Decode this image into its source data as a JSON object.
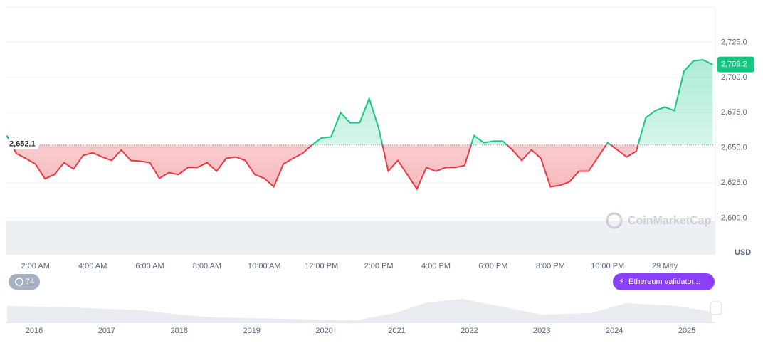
{
  "chart_data": {
    "type": "line",
    "categories": [
      null,
      null,
      null,
      "2:00 AM",
      null,
      null,
      null,
      null,
      null,
      "4:00 AM",
      null,
      null,
      null,
      null,
      null,
      "6:00 AM",
      null,
      null,
      null,
      null,
      null,
      "8:00 AM",
      null,
      null,
      null,
      null,
      null,
      "10:00 AM",
      null,
      null,
      null,
      null,
      null,
      "12:00 PM",
      null,
      null,
      null,
      null,
      null,
      "2:00 PM",
      null,
      null,
      null,
      null,
      null,
      "4:00 PM",
      null,
      null,
      null,
      null,
      null,
      "6:00 PM",
      null,
      null,
      null,
      null,
      null,
      "8:00 PM",
      null,
      null,
      null,
      null,
      null,
      "10:00 PM",
      null,
      null,
      null,
      null,
      null,
      "29 May",
      null,
      null,
      null,
      null,
      null
    ],
    "series": [
      {
        "values": [
          2658.7,
          2646,
          2642.5,
          2638.5,
          2628,
          2631,
          2639.5,
          2635,
          2644.5,
          2646.5,
          2643.5,
          2641,
          2648.5,
          2641,
          2640.5,
          2639.5,
          2628.3,
          2632.4,
          2631,
          2636,
          2636,
          2639.5,
          2633.4,
          2642.5,
          2643.5,
          2641,
          2631,
          2628.3,
          2622.3,
          2638.5,
          2642.5,
          2646,
          2652,
          2657,
          2657.7,
          2675,
          2667.8,
          2667.8,
          2685,
          2663.8,
          2633.4,
          2641,
          2631,
          2620.7,
          2636,
          2633.4,
          2636,
          2636,
          2637.4,
          2658.7,
          2653.6,
          2654.7,
          2654.7,
          2648.6,
          2641,
          2648.6,
          2642.5,
          2622.3,
          2623.3,
          2625.8,
          2633.4,
          2633.4,
          2643.5,
          2653.6,
          2648.6,
          2643.5,
          2647.6,
          2671.4,
          2676.4,
          2679,
          2676.4,
          2704.3,
          2711.8,
          2712.5,
          2709.2
        ]
      }
    ],
    "up_color": "#16c784",
    "down_color": "#ea3943",
    "baseline": {
      "value": 2652.1,
      "label": "2,652.1"
    },
    "current_price": {
      "value": 2709.2,
      "label": "2,709.2"
    },
    "ylim": [
      2574,
      2750
    ],
    "yticks": [
      {
        "value": 2600,
        "label": "2,600.0"
      },
      {
        "value": 2625,
        "label": "2,625.0"
      },
      {
        "value": 2650,
        "label": "2,650.0"
      },
      {
        "value": 2675,
        "label": "2,675.0"
      },
      {
        "value": 2700,
        "label": "2,700.0"
      },
      {
        "value": 2725,
        "label": "2,725.0"
      }
    ],
    "grid": true,
    "currency": "USD",
    "watermark": "CoinMarketCap",
    "badge": "74",
    "event_label": "Ethereum validator...",
    "navigator_years": [
      "2016",
      "2017",
      "2018",
      "2019",
      "2020",
      "2021",
      "2022",
      "2023",
      "2024",
      "2025"
    ]
  }
}
